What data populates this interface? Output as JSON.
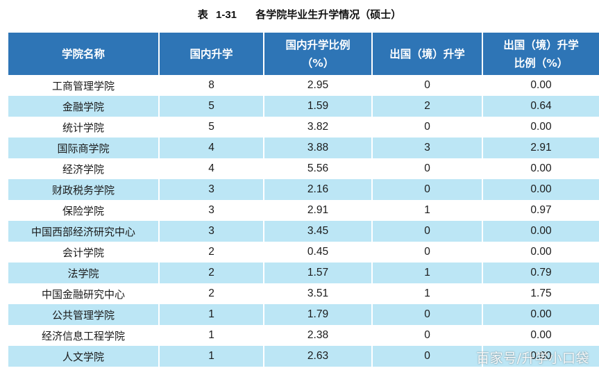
{
  "caption": {
    "label": "表",
    "number": "1-31",
    "title": "各学院毕业生升学情况（硕士）"
  },
  "table": {
    "headers": [
      [
        "学院名称"
      ],
      [
        "国内升学"
      ],
      [
        "国内升学比例",
        "（%）"
      ],
      [
        "出国（境）升学"
      ],
      [
        "出国（境）升学",
        "比例（%）"
      ]
    ],
    "rows": [
      [
        "工商管理学院",
        "8",
        "2.95",
        "0",
        "0.00"
      ],
      [
        "金融学院",
        "5",
        "1.59",
        "2",
        "0.64"
      ],
      [
        "统计学院",
        "5",
        "3.82",
        "0",
        "0.00"
      ],
      [
        "国际商学院",
        "4",
        "3.88",
        "3",
        "2.91"
      ],
      [
        "经济学院",
        "4",
        "5.56",
        "0",
        "0.00"
      ],
      [
        "财政税务学院",
        "3",
        "2.16",
        "0",
        "0.00"
      ],
      [
        "保险学院",
        "3",
        "2.91",
        "1",
        "0.97"
      ],
      [
        "中国西部经济研究中心",
        "3",
        "3.45",
        "0",
        "0.00"
      ],
      [
        "会计学院",
        "2",
        "0.45",
        "0",
        "0.00"
      ],
      [
        "法学院",
        "2",
        "1.57",
        "1",
        "0.79"
      ],
      [
        "中国金融研究中心",
        "2",
        "3.51",
        "1",
        "1.75"
      ],
      [
        "公共管理学院",
        "1",
        "1.79",
        "0",
        "0.00"
      ],
      [
        "经济信息工程学院",
        "1",
        "2.38",
        "0",
        "0.00"
      ],
      [
        "人文学院",
        "1",
        "2.63",
        "0",
        "0.00"
      ]
    ]
  },
  "watermark": "百家号/升学小口袋",
  "colors": {
    "header_bg": "#2e75b6",
    "header_text": "#ffffff",
    "stripe": "#bce6f5",
    "row_bg": "#ffffff"
  }
}
